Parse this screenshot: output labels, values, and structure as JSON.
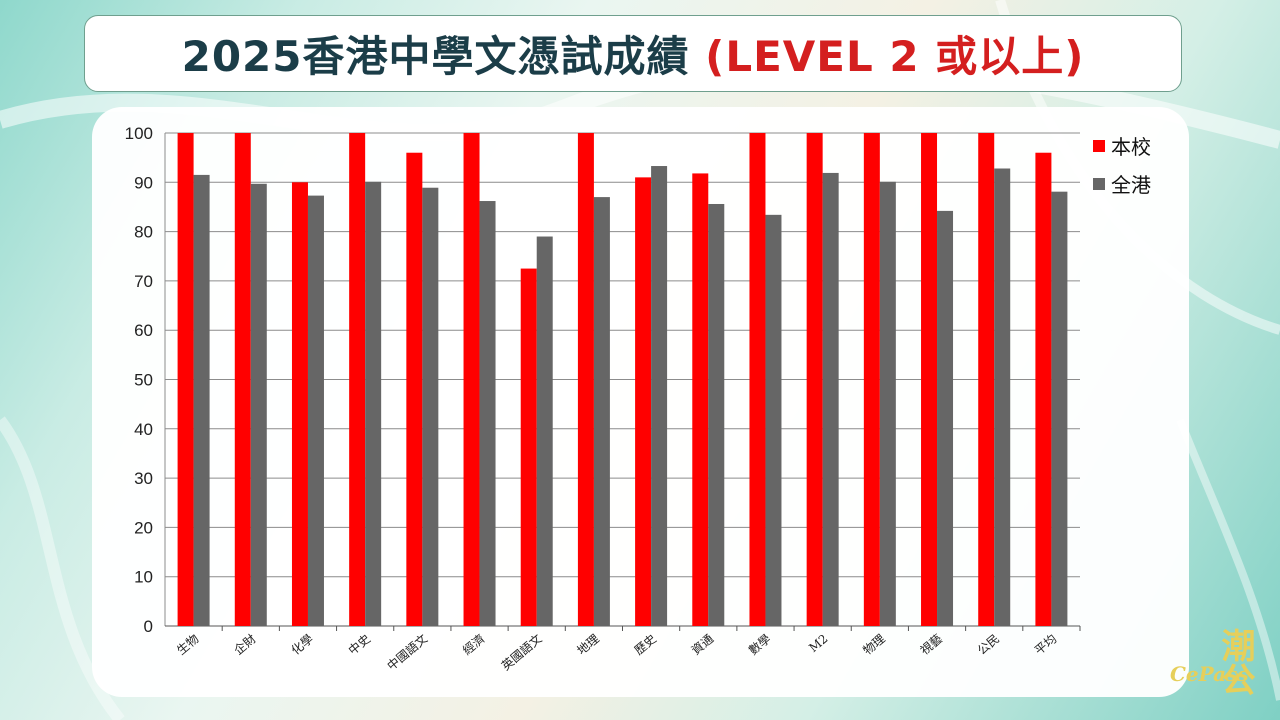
{
  "title": {
    "main": "2025香港中學文憑試成績",
    "accent": "(LEVEL 2 或以上)"
  },
  "logo": {
    "cn": "潮公",
    "en": "CePass"
  },
  "colors": {
    "school": "#ff0000",
    "hk": "#666666",
    "title": "#1b3d48",
    "accent": "#d41f1f"
  },
  "chart_data": {
    "type": "bar",
    "categories": [
      "生物",
      "企財",
      "化學",
      "中史",
      "中國語文",
      "經濟",
      "英國語文",
      "地理",
      "歷史",
      "資通",
      "數學",
      "M2",
      "物理",
      "視藝",
      "公民",
      "平均"
    ],
    "series": [
      {
        "name": "本校",
        "values": [
          100,
          100,
          90,
          100,
          96,
          100,
          72.5,
          100,
          91,
          91.8,
          100,
          100,
          100,
          100,
          100,
          96
        ]
      },
      {
        "name": "全港",
        "values": [
          91.5,
          89.7,
          87.3,
          90.1,
          88.9,
          86.2,
          79,
          87,
          93.3,
          85.6,
          83.4,
          91.9,
          90.1,
          84.2,
          92.8,
          88.1
        ]
      }
    ],
    "ylim": [
      0,
      100
    ],
    "yticks": [
      0,
      10,
      20,
      30,
      40,
      50,
      60,
      70,
      80,
      90,
      100
    ],
    "grid": true,
    "legend": "top-right"
  }
}
